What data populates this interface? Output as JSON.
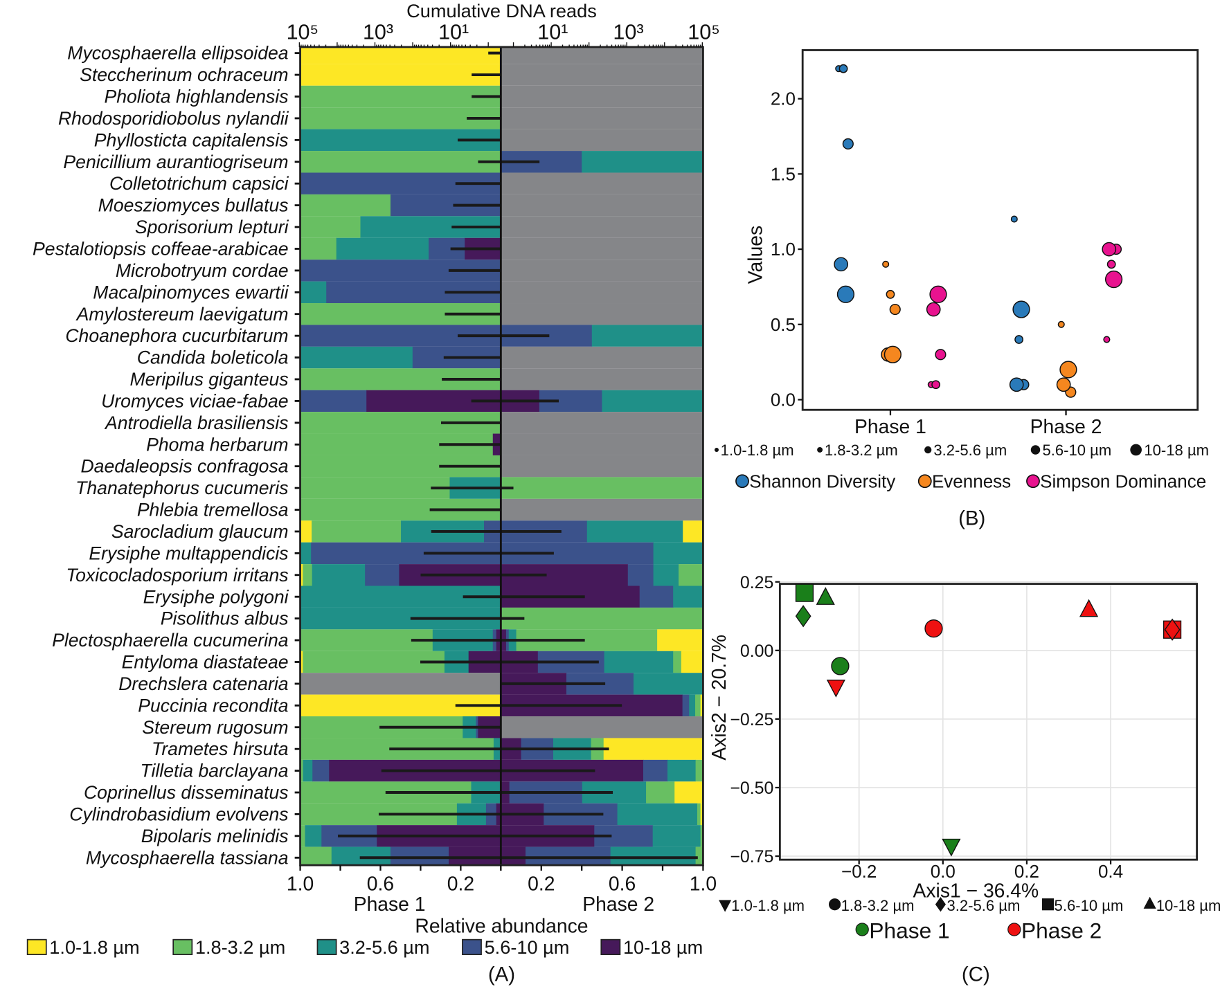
{
  "colors": {
    "size_classes": [
      "#fde725",
      "#68bf62",
      "#1f9088",
      "#3b528b",
      "#46195a"
    ],
    "absent": "#858689",
    "phase1": "#1a7f1a",
    "phase2": "#ee1111",
    "phase1_text": "#1e8b1e",
    "phase2_text": "#e8141c",
    "indices": [
      "#2a7ab9",
      "#f5871f",
      "#e8138f"
    ]
  },
  "chart_data": [
    {
      "panel": "(A)",
      "type": "bar",
      "orientation": "horizontal diverging stacked",
      "top_axis_title": "Cumulative DNA reads",
      "top_ticks_phase1": [
        "10⁵",
        "10³",
        "10¹"
      ],
      "top_ticks_phase2": [
        "10¹",
        "10³",
        "10⁵"
      ],
      "top_tick_log10": [
        5,
        3,
        1
      ],
      "xlabel": "Relative abundance",
      "bottom_ticks_phase1": [
        "1.0",
        "0.6",
        "0.2"
      ],
      "bottom_ticks_phase2": [
        "0.2",
        "0.6",
        "1.0"
      ],
      "bottom_tick_values": [
        1.0,
        0.6,
        0.2
      ],
      "phase1_label": "Phase 1",
      "phase2_label": "Phase 2",
      "legend": [
        "1.0-1.8 µm",
        "1.8-3.2 µm",
        "3.2-5.6 µm",
        "5.6-10 µm",
        "10-18 µm"
      ],
      "note": "fractions order: [1.0-1.8, 1.8-3.2, 3.2-5.6, 5.6-10, 10-18]; null = absent (gray); err = log10 cumulative reads",
      "species": [
        {
          "name": "Mycosphaerella ellipsoidea",
          "p1": [
            1,
            0,
            0,
            0,
            0
          ],
          "p2": null,
          "err1": 0.0,
          "err2": null
        },
        {
          "name": "Steccherinum ochraceum",
          "p1": [
            1,
            0,
            0,
            0,
            0
          ],
          "p2": null,
          "err1": 0.44,
          "err2": null
        },
        {
          "name": "Pholiota highlandensis",
          "p1": [
            0,
            1,
            0,
            0,
            0
          ],
          "p2": null,
          "err1": 0.44,
          "err2": null
        },
        {
          "name": "Rhodosporidiobolus nylandii",
          "p1": [
            0,
            1,
            0,
            0,
            0
          ],
          "p2": null,
          "err1": 0.57,
          "err2": null
        },
        {
          "name": "Phyllosticta capitalensis",
          "p1": [
            0,
            0,
            1,
            0,
            0
          ],
          "p2": null,
          "err1": 0.81,
          "err2": null
        },
        {
          "name": "Penicillium aurantiogriseum",
          "p1": [
            0,
            1,
            0,
            0,
            0
          ],
          "p2": [
            0,
            0,
            0.6,
            0.4,
            0
          ],
          "err1": 0.27,
          "err2": 0.69
        },
        {
          "name": "Colletotrichum capsici",
          "p1": [
            0,
            0,
            0,
            1,
            0
          ],
          "p2": null,
          "err1": 0.87,
          "err2": null
        },
        {
          "name": "Moesziomyces bullatus",
          "p1": [
            0,
            0.45,
            0,
            0.55,
            0
          ],
          "p2": null,
          "err1": 0.93,
          "err2": null
        },
        {
          "name": "Sporisorium lepturi",
          "p1": [
            0,
            0.3,
            0.7,
            0,
            0
          ],
          "p2": null,
          "err1": 0.97,
          "err2": null
        },
        {
          "name": "Pestalotiopsis coffeae-arabicae",
          "p1": [
            0,
            0.18,
            0.46,
            0.18,
            0.18
          ],
          "p2": null,
          "err1": 1.0,
          "err2": null
        },
        {
          "name": "Microbotryum cordae",
          "p1": [
            0,
            0,
            0,
            1,
            0
          ],
          "p2": null,
          "err1": 1.05,
          "err2": null
        },
        {
          "name": "Macalpinomyces ewartii",
          "p1": [
            0,
            0,
            0.13,
            0.87,
            0
          ],
          "p2": null,
          "err1": 1.15,
          "err2": null
        },
        {
          "name": "Amylostereum laevigatum",
          "p1": [
            0,
            1,
            0,
            0,
            0
          ],
          "p2": null,
          "err1": 1.15,
          "err2": null
        },
        {
          "name": "Choanephora cucurbitarum",
          "p1": [
            0,
            0,
            0,
            1,
            0
          ],
          "p2": [
            0,
            0,
            0.55,
            0.45,
            0
          ],
          "err1": 0.81,
          "err2": 0.95
        },
        {
          "name": "Candida boleticola",
          "p1": [
            0,
            0,
            0.56,
            0.44,
            0
          ],
          "p2": null,
          "err1": 1.18,
          "err2": null
        },
        {
          "name": "Meripilus giganteus",
          "p1": [
            0,
            1,
            0,
            0,
            0
          ],
          "p2": null,
          "err1": 1.23,
          "err2": null
        },
        {
          "name": "Uromyces viciae-fabae",
          "p1": [
            0,
            0,
            0,
            0.33,
            0.67
          ],
          "p2": [
            0,
            0,
            0.5,
            0.31,
            0.19
          ],
          "err1": 0.45,
          "err2": 1.2
        },
        {
          "name": "Antrodiella brasiliensis",
          "p1": [
            0,
            1,
            0,
            0,
            0
          ],
          "p2": null,
          "err1": 1.25,
          "err2": null
        },
        {
          "name": "Phoma herbarum",
          "p1": [
            0,
            0.96,
            0,
            0,
            0.04
          ],
          "p2": null,
          "err1": 1.3,
          "err2": null
        },
        {
          "name": "Daedaleopsis confragosa",
          "p1": [
            0,
            1,
            0,
            0,
            0
          ],
          "p2": null,
          "err1": 1.3,
          "err2": null
        },
        {
          "name": "Thanatephorus cucumeris",
          "p1": [
            0,
            0.745,
            0.255,
            0,
            0
          ],
          "p2": [
            0,
            1,
            0,
            0,
            0
          ],
          "err1": 1.52,
          "err2": 0.0
        },
        {
          "name": "Phlebia tremellosa",
          "p1": [
            0,
            1,
            0,
            0,
            0
          ],
          "p2": null,
          "err1": 1.55,
          "err2": null
        },
        {
          "name": "Sarocladium glaucum",
          "p1": [
            0.057,
            0.445,
            0.414,
            0.084,
            0
          ],
          "p2": [
            0.1,
            0,
            0.474,
            0.426,
            0
          ],
          "err1": 1.51,
          "err2": 1.27
        },
        {
          "name": "Erysiphe multappendicis",
          "p1": [
            0,
            0,
            0.054,
            0.946,
            0
          ],
          "p2": [
            0,
            0,
            0.246,
            0.754,
            0
          ],
          "err1": 1.71,
          "err2": 1.07
        },
        {
          "name": "Toxicocladosporium irritans",
          "p1": [
            0.013,
            0.046,
            0.264,
            0.17,
            0.507
          ],
          "p2": [
            0,
            0.121,
            0.125,
            0.126,
            0.628
          ],
          "err1": 1.79,
          "err2": 0.88
        },
        {
          "name": "Erysiphe polygoni",
          "p1": [
            0,
            0,
            1,
            0,
            0
          ],
          "p2": [
            0,
            0,
            0.148,
            0.166,
            0.686
          ],
          "err1": 0.67,
          "err2": 1.89
        },
        {
          "name": "Pisolithus albus",
          "p1": [
            0,
            0,
            1,
            0,
            0
          ],
          "p2": [
            0,
            1,
            0,
            0,
            0
          ],
          "err1": 2.06,
          "err2": 0.29
        },
        {
          "name": "Plectosphaerella cucumerina",
          "p1": [
            0,
            0.66,
            0.3,
            0.017,
            0.023
          ],
          "p2": [
            0.227,
            0.697,
            0.037,
            0.013,
            0.026
          ],
          "err1": 2.04,
          "err2": 1.89
        },
        {
          "name": "Entyloma diastateae",
          "p1": [
            0.013,
            0.706,
            0.12,
            0,
            0.161
          ],
          "p2": [
            0.108,
            0.04,
            0.341,
            0.328,
            0.183
          ],
          "err1": 1.8,
          "err2": 2.26
        },
        {
          "name": "Drechslera catenaria",
          "p1": null,
          "p2": [
            0,
            0,
            0.344,
            0.332,
            0.324
          ],
          "err1": null,
          "err2": 2.43
        },
        {
          "name": "Puccinia recondita",
          "p1": [
            1,
            0,
            0,
            0,
            0
          ],
          "p2": [
            0.013,
            0.026,
            0.03,
            0.033,
            0.898
          ],
          "err1": 0.87,
          "err2": 2.87
        },
        {
          "name": "Stereum rugosum",
          "p1": [
            0,
            0.81,
            0.066,
            0.01,
            0.114
          ],
          "p2": null,
          "err1": 2.88,
          "err2": null
        },
        {
          "name": "Trametes hirsuta",
          "p1": [
            0,
            0.964,
            0.036,
            0,
            0
          ],
          "p2": [
            0.492,
            0.062,
            0.187,
            0.159,
            0.1
          ],
          "err1": 2.62,
          "err2": 2.53
        },
        {
          "name": "Tilletia barclayana",
          "p1": [
            0,
            0.014,
            0.047,
            0.083,
            0.856
          ],
          "p2": [
            0,
            0.037,
            0.139,
            0.12,
            0.704
          ],
          "err1": 2.83,
          "err2": 2.16
        },
        {
          "name": "Coprinellus disseminatus",
          "p1": [
            0,
            0.852,
            0.148,
            0,
            0
          ],
          "p2": [
            0.141,
            0.141,
            0.316,
            0.36,
            0.042
          ],
          "err1": 2.72,
          "err2": 2.63
        },
        {
          "name": "Cylindrobasidium evolvens",
          "p1": [
            0,
            0.781,
            0.145,
            0.051,
            0.023
          ],
          "p2": [
            0.013,
            0.016,
            0.395,
            0.364,
            0.212
          ],
          "err1": 2.9,
          "err2": 2.38
        },
        {
          "name": "Bipolaris melinidis",
          "p1": [
            0,
            0.024,
            0.082,
            0.276,
            0.618
          ],
          "p2": [
            0,
            0.013,
            0.236,
            0.289,
            0.462
          ],
          "err1": 3.98,
          "err2": 2.6
        },
        {
          "name": "Mycosphaerella tassiana",
          "p1": [
            0,
            0.156,
            0.294,
            0.29,
            0.26
          ],
          "p2": [
            0,
            0.037,
            0.421,
            0.42,
            0.122
          ],
          "err1": 3.4,
          "err2": 4.88
        }
      ]
    },
    {
      "panel": "(B)",
      "type": "scatter",
      "ylabel": "Values",
      "ylim": [
        0,
        2.3
      ],
      "yticks": [
        "0.0",
        "0.5",
        "1.0",
        "1.5",
        "2.0"
      ],
      "ytick_values": [
        0,
        0.5,
        1,
        1.5,
        2
      ],
      "categories": [
        "Phase 1",
        "Phase 2"
      ],
      "size_legend": [
        "1.0-1.8 µm",
        "1.8-3.2 µm",
        "3.2-5.6 µm",
        "5.6-10 µm",
        "10-18 µm"
      ],
      "series": [
        {
          "name": "Shannon Diversity",
          "phase1": [
            2.2,
            2.2,
            1.7,
            0.9,
            0.7
          ],
          "phase2": [
            1.2,
            0.4,
            0.1,
            0.1,
            0.6
          ]
        },
        {
          "name": "Evenness",
          "phase1": [
            0.9,
            0.7,
            0.6,
            0.3,
            0.3
          ],
          "phase2": [
            0.5,
            0.1,
            0.05,
            0.1,
            0.2
          ]
        },
        {
          "name": "Simpson Dominance",
          "phase1": [
            0.1,
            0.1,
            0.3,
            0.6,
            0.7
          ],
          "phase2": [
            0.4,
            0.9,
            1.0,
            1.0,
            0.8
          ]
        }
      ]
    },
    {
      "panel": "(C)",
      "type": "scatter",
      "xlabel": "Axis1 − 36.4%",
      "ylabel": "Axis2 − 20.7%",
      "xlim": [
        -0.39,
        0.61
      ],
      "ylim": [
        -0.75,
        0.25
      ],
      "xticks": [
        "−0.2",
        "0.0",
        "0.2",
        "0.4"
      ],
      "xtick_values": [
        -0.2,
        0,
        0.2,
        0.4
      ],
      "yticks": [
        "0.25",
        "0.00",
        "−0.25",
        "−0.50",
        "−0.75"
      ],
      "ytick_values": [
        0.25,
        0,
        -0.25,
        -0.5,
        -0.75
      ],
      "grid": true,
      "shape_legend": [
        {
          "label": "1.0-1.8 µm",
          "shape": "triangle-down"
        },
        {
          "label": "1.8-3.2 µm",
          "shape": "circle"
        },
        {
          "label": "3.2-5.6 µm",
          "shape": "diamond"
        },
        {
          "label": "5.6-10 µm",
          "shape": "square"
        },
        {
          "label": "10-18 µm",
          "shape": "triangle-up"
        }
      ],
      "phase_legend": [
        "Phase 1",
        "Phase 2"
      ],
      "points": [
        {
          "phase": 1,
          "size": 3,
          "x": -0.33,
          "y": 0.21
        },
        {
          "phase": 1,
          "size": 4,
          "x": -0.28,
          "y": 0.19
        },
        {
          "phase": 1,
          "size": 2,
          "x": -0.333,
          "y": 0.125
        },
        {
          "phase": 1,
          "size": 1,
          "x": -0.245,
          "y": -0.057
        },
        {
          "phase": 1,
          "size": 0,
          "x": 0.02,
          "y": -0.71
        },
        {
          "phase": 2,
          "size": 1,
          "x": -0.022,
          "y": 0.08
        },
        {
          "phase": 2,
          "size": 0,
          "x": -0.255,
          "y": -0.13
        },
        {
          "phase": 2,
          "size": 4,
          "x": 0.348,
          "y": 0.146
        },
        {
          "phase": 2,
          "size": 3,
          "x": 0.547,
          "y": 0.076
        },
        {
          "phase": 2,
          "size": 2,
          "x": 0.547,
          "y": 0.076
        }
      ]
    }
  ]
}
